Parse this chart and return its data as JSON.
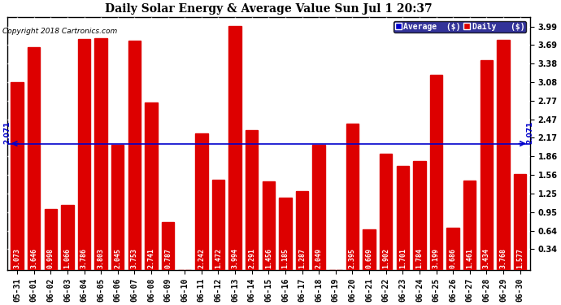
{
  "title": "Daily Solar Energy & Average Value Sun Jul 1 20:37",
  "copyright": "Copyright 2018 Cartronics.com",
  "average_value": 2.071,
  "average_label": "2.071",
  "categories": [
    "05-31",
    "06-01",
    "06-02",
    "06-03",
    "06-04",
    "06-05",
    "06-06",
    "06-07",
    "06-08",
    "06-09",
    "06-10",
    "06-11",
    "06-12",
    "06-13",
    "06-14",
    "06-15",
    "06-16",
    "06-17",
    "06-18",
    "06-19",
    "06-20",
    "06-21",
    "06-22",
    "06-23",
    "06-24",
    "06-25",
    "06-26",
    "06-27",
    "06-28",
    "06-29",
    "06-30"
  ],
  "values": [
    3.073,
    3.646,
    0.998,
    1.066,
    3.786,
    3.803,
    2.045,
    3.753,
    2.741,
    0.787,
    0.0,
    2.242,
    1.472,
    3.994,
    2.291,
    1.456,
    1.185,
    1.287,
    2.049,
    0.0,
    2.395,
    0.669,
    1.902,
    1.701,
    1.784,
    3.199,
    0.686,
    1.461,
    3.434,
    3.768,
    1.577
  ],
  "bar_color": "#dd0000",
  "line_color": "#0000cc",
  "background_color": "#ffffff",
  "plot_background": "#ffffff",
  "grid_color": "#aaaaaa",
  "ylim_min": 0.0,
  "ylim_max": 4.15,
  "yticks": [
    0.34,
    0.64,
    0.95,
    1.25,
    1.56,
    1.86,
    2.17,
    2.47,
    2.77,
    3.08,
    3.38,
    3.69,
    3.99
  ],
  "legend_avg_color": "#0000cc",
  "legend_daily_color": "#dd0000",
  "legend_avg_text": "Average  ($)",
  "legend_daily_text": "Daily   ($)",
  "border_color": "#000000",
  "title_fontsize": 10,
  "bar_label_fontsize": 6,
  "tick_fontsize": 7,
  "copyright_fontsize": 6.5
}
